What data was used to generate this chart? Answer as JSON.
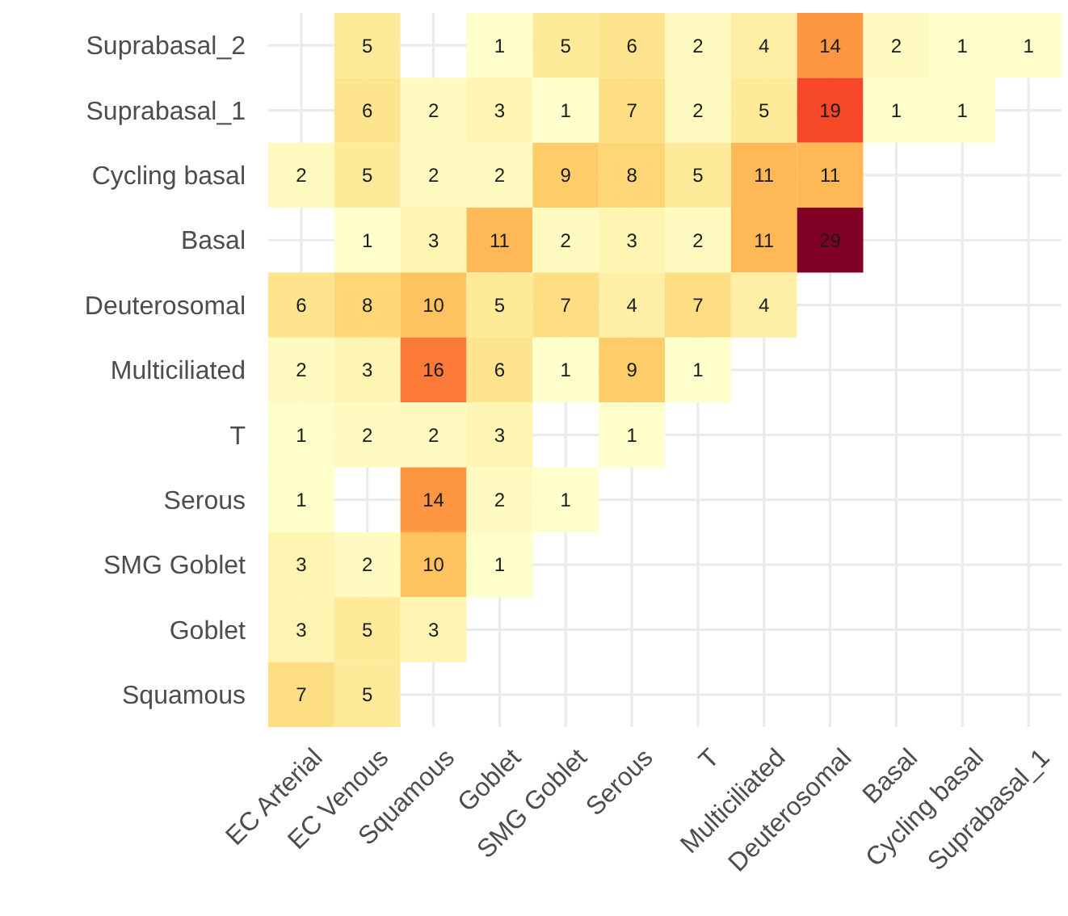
{
  "chart_data": {
    "type": "heatmap",
    "categories": [
      "EC Arterial",
      "EC Venous",
      "Squamous",
      "Goblet",
      "SMG Goblet",
      "Serous",
      "T",
      "Multiciliated",
      "Deuterosomal",
      "Basal",
      "Cycling basal",
      "Suprabasal_1"
    ],
    "y_categories": [
      "Suprabasal_2",
      "Suprabasal_1",
      "Cycling basal",
      "Basal",
      "Deuterosomal",
      "Multiciliated",
      "T",
      "Serous",
      "SMG Goblet",
      "Goblet",
      "Squamous"
    ],
    "cells": [
      [
        null,
        5,
        null,
        1,
        5,
        6,
        2,
        4,
        14,
        2,
        1,
        1
      ],
      [
        null,
        6,
        2,
        3,
        1,
        7,
        2,
        5,
        19,
        1,
        1,
        null
      ],
      [
        2,
        5,
        2,
        2,
        9,
        8,
        5,
        11,
        11,
        null,
        null,
        null
      ],
      [
        null,
        1,
        3,
        11,
        2,
        3,
        2,
        11,
        29,
        null,
        null,
        null
      ],
      [
        6,
        8,
        10,
        5,
        7,
        4,
        7,
        4,
        null,
        null,
        null,
        null
      ],
      [
        2,
        3,
        16,
        6,
        1,
        9,
        1,
        null,
        null,
        null,
        null,
        null
      ],
      [
        1,
        2,
        2,
        3,
        null,
        1,
        null,
        null,
        null,
        null,
        null,
        null
      ],
      [
        1,
        null,
        14,
        2,
        1,
        null,
        null,
        null,
        null,
        null,
        null,
        null
      ],
      [
        3,
        2,
        10,
        1,
        null,
        null,
        null,
        null,
        null,
        null,
        null,
        null
      ],
      [
        3,
        5,
        3,
        null,
        null,
        null,
        null,
        null,
        null,
        null,
        null,
        null
      ],
      [
        7,
        5,
        null,
        null,
        null,
        null,
        null,
        null,
        null,
        null,
        null,
        null
      ]
    ],
    "data_labels": true,
    "grid": true
  }
}
